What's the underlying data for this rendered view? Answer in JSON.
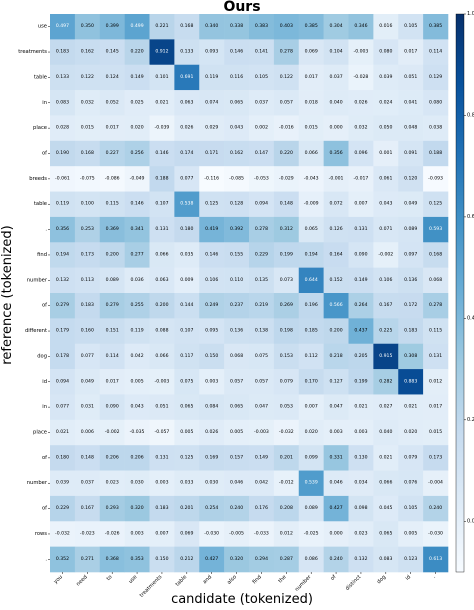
{
  "chart_data": {
    "type": "heatmap",
    "title": "Ours",
    "xlabel": "candidate (tokenized)",
    "ylabel": "reference (tokenized)",
    "x_categories": [
      "you",
      "need",
      "to",
      "use",
      "treatments",
      "table",
      "and",
      "also",
      "find",
      "the",
      "number",
      "of",
      "distinct",
      "dog",
      "id",
      "."
    ],
    "y_categories": [
      "use",
      "treatments",
      "table",
      "in",
      "place",
      "of",
      "breeds",
      "table",
      ".",
      "find",
      "number",
      "of",
      "different",
      "dog",
      "id",
      "in",
      "place",
      "of",
      "number",
      "of",
      "rows",
      "."
    ],
    "values": [
      [
        0.497,
        0.35,
        0.399,
        0.499,
        0.221,
        0.168,
        0.34,
        0.338,
        0.383,
        0.403,
        0.385,
        0.304,
        0.346,
        0.016,
        0.105,
        0.385
      ],
      [
        0.183,
        0.162,
        0.145,
        0.22,
        0.912,
        0.133,
        0.093,
        0.146,
        0.141,
        0.278,
        0.069,
        0.104,
        -0.003,
        0.08,
        0.017,
        0.114
      ],
      [
        0.133,
        0.122,
        0.124,
        0.149,
        0.101,
        0.691,
        0.119,
        0.116,
        0.105,
        0.122,
        0.017,
        0.037,
        -0.028,
        0.039,
        0.051,
        0.129
      ],
      [
        0.083,
        0.032,
        0.052,
        0.025,
        0.021,
        0.063,
        0.074,
        0.065,
        0.037,
        0.057,
        0.018,
        0.04,
        0.026,
        0.024,
        0.041,
        0.08
      ],
      [
        0.028,
        0.015,
        0.017,
        0.02,
        -0.039,
        0.026,
        0.029,
        0.043,
        0.002,
        -0.016,
        0.015,
        -0.0,
        0.032,
        0.05,
        0.048,
        0.038
      ],
      [
        0.19,
        0.168,
        0.227,
        0.256,
        0.146,
        0.174,
        0.171,
        0.162,
        0.147,
        0.22,
        0.066,
        0.356,
        0.096,
        0.001,
        0.091,
        0.188
      ],
      [
        -0.061,
        -0.075,
        -0.086,
        -0.049,
        0.188,
        0.077,
        -0.116,
        -0.085,
        -0.053,
        -0.029,
        -0.043,
        -0.001,
        -0.017,
        0.061,
        0.12,
        -0.093
      ],
      [
        0.119,
        0.1,
        0.115,
        0.146,
        0.107,
        0.538,
        0.125,
        0.128,
        0.094,
        0.148,
        -0.009,
        0.072,
        0.007,
        0.043,
        0.049,
        0.125
      ],
      [
        0.356,
        0.253,
        0.369,
        0.341,
        0.131,
        0.18,
        0.419,
        0.392,
        0.278,
        0.312,
        0.065,
        0.126,
        0.131,
        0.071,
        0.089,
        0.593
      ],
      [
        0.194,
        0.173,
        0.2,
        0.277,
        0.066,
        0.035,
        0.146,
        0.155,
        0.229,
        0.199,
        0.194,
        0.164,
        0.09,
        -0.002,
        0.097,
        0.168
      ],
      [
        0.132,
        0.113,
        0.089,
        0.036,
        0.063,
        0.009,
        0.106,
        0.11,
        0.135,
        0.073,
        0.644,
        0.152,
        0.149,
        0.106,
        0.136,
        0.068
      ],
      [
        0.279,
        0.183,
        0.279,
        0.255,
        0.2,
        0.144,
        0.249,
        0.237,
        0.219,
        0.269,
        0.196,
        0.566,
        0.264,
        0.167,
        0.172,
        0.278
      ],
      [
        0.179,
        0.16,
        0.151,
        0.119,
        0.088,
        0.107,
        0.095,
        0.136,
        0.138,
        0.198,
        0.185,
        0.2,
        0.437,
        0.225,
        0.183,
        0.115
      ],
      [
        0.178,
        0.077,
        0.114,
        0.042,
        0.066,
        0.117,
        0.15,
        0.068,
        0.075,
        0.153,
        0.112,
        0.218,
        0.205,
        0.915,
        0.308,
        0.131
      ],
      [
        0.094,
        0.049,
        0.017,
        0.005,
        -0.003,
        0.075,
        0.003,
        0.057,
        0.057,
        0.079,
        0.17,
        0.127,
        0.199,
        0.282,
        0.883,
        0.012
      ],
      [
        0.077,
        0.031,
        0.09,
        0.043,
        0.051,
        0.065,
        0.084,
        0.065,
        0.047,
        0.053,
        0.007,
        0.047,
        0.021,
        0.027,
        0.021,
        0.017
      ],
      [
        0.021,
        0.006,
        -0.002,
        -0.035,
        -0.057,
        0.005,
        0.026,
        0.005,
        -0.003,
        -0.032,
        0.02,
        0.003,
        0.003,
        0.04,
        0.02,
        0.015
      ],
      [
        0.18,
        0.148,
        0.206,
        0.206,
        0.131,
        0.125,
        0.169,
        0.157,
        0.149,
        0.201,
        0.099,
        0.331,
        0.13,
        0.021,
        0.079,
        0.173
      ],
      [
        0.039,
        0.037,
        0.023,
        0.03,
        0.003,
        0.033,
        0.03,
        0.046,
        0.042,
        -0.012,
        0.539,
        0.046,
        0.034,
        0.066,
        0.076,
        -0.004
      ],
      [
        0.229,
        0.167,
        0.293,
        0.32,
        0.183,
        0.201,
        0.254,
        0.24,
        0.176,
        0.208,
        0.089,
        0.427,
        0.098,
        0.045,
        0.105,
        0.24
      ],
      [
        -0.032,
        -0.023,
        -0.026,
        0.003,
        0.007,
        0.069,
        -0.03,
        -0.005,
        -0.033,
        0.012,
        -0.025,
        0.0,
        0.023,
        0.065,
        0.005,
        -0.03
      ],
      [
        0.352,
        0.271,
        0.368,
        0.353,
        0.15,
        0.212,
        0.427,
        0.32,
        0.294,
        0.287,
        0.086,
        0.24,
        0.132,
        0.083,
        0.123,
        0.613
      ]
    ],
    "vmin": -0.1,
    "vmax": 1.0,
    "colorbar_ticks": [
      0.0,
      0.2,
      0.4,
      0.6,
      0.8,
      1.0
    ],
    "colormap": {
      "low": "#f7fbff",
      "high": "#08306b"
    }
  }
}
